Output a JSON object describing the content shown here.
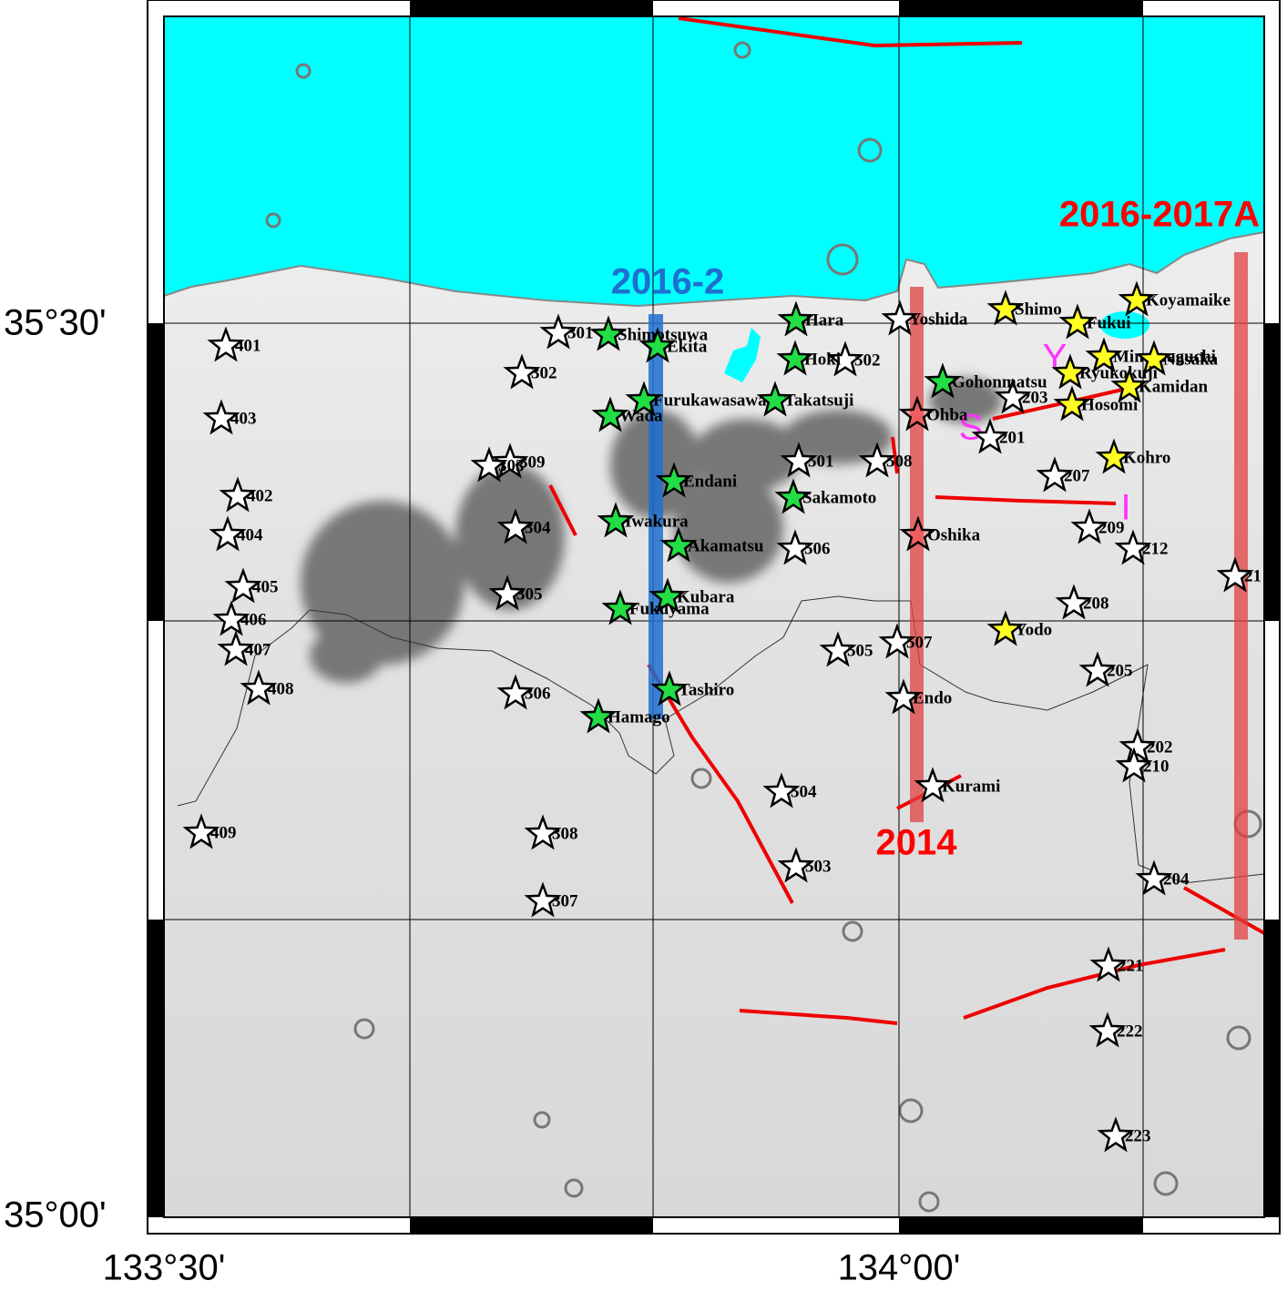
{
  "axes": {
    "lat_labels": [
      "35°30'",
      "35°00'"
    ],
    "lon_labels": [
      "133°30'",
      "134°00'"
    ]
  },
  "profiles": [
    "2016-2",
    "2014",
    "2016-2017A"
  ],
  "markers": [
    "S",
    "Y",
    "I"
  ],
  "stations": [
    "401",
    "403",
    "402",
    "404",
    "405",
    "406",
    "407",
    "408",
    "409",
    "301",
    "302",
    "309",
    "303",
    "304",
    "305",
    "306",
    "308",
    "307",
    "502",
    "501",
    "506",
    "505",
    "504",
    "503",
    "508",
    "507",
    "Yoshida",
    "Endo",
    "Kurami",
    "201",
    "203",
    "207",
    "209",
    "212",
    "21",
    "208",
    "205",
    "202",
    "210",
    "204",
    "221",
    "222",
    "223",
    "Ohba",
    "Oshika",
    "Shimotsuwa",
    "Ekita",
    "Hara",
    "Hoki",
    "Furukawasawa",
    "Wada",
    "Takatsuji",
    "Endani",
    "Sakamoto",
    "Iwakura",
    "Akamatsu",
    "Kubara",
    "Fukuyama",
    "Tashiro",
    "Hamago",
    "Gohonmatsu",
    "Shimo",
    "Koyamaike",
    "Fukui",
    "Minamaguchi",
    "Nosaka",
    "Ryukokuji",
    "Kamidan",
    "Hosomi",
    "Kohro",
    "Yodo"
  ]
}
